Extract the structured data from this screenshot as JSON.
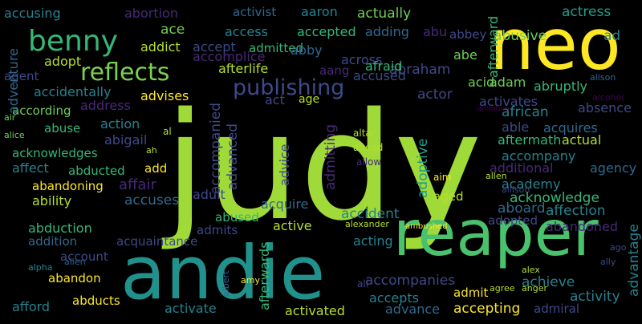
{
  "words": [
    "judy",
    "andie",
    "reaper",
    "neo",
    "benny",
    "reflects",
    "publishing",
    "accusing",
    "abortion",
    "activist",
    "aaron",
    "actually",
    "actress",
    "abbey",
    "abusive",
    "ad",
    "ace",
    "access",
    "accepted",
    "adding",
    "abu",
    "addict",
    "accept",
    "admitted",
    "abby",
    "aang",
    "abe",
    "accused",
    "adopt",
    "accomplice",
    "afterlife",
    "across",
    "abraham",
    "agent",
    "act",
    "age",
    "actor",
    "acid",
    "adam",
    "abruptly",
    "accidentally",
    "advises",
    "address",
    "activates",
    "african",
    "according",
    "absence",
    "able",
    "actual",
    "acquires",
    "action",
    "abuse",
    "abigail",
    "acknowledges",
    "affect",
    "abducted",
    "add",
    "affair",
    "abandoning",
    "accuses",
    "ability",
    "adult",
    "acquire",
    "accident",
    "abused",
    "admits",
    "abduction",
    "acquaintance",
    "addition",
    "active",
    "acting",
    "account",
    "abandon",
    "abducts",
    "afford",
    "activate",
    "activated",
    "advance",
    "accepting",
    "admiral",
    "activity",
    "achieve",
    "accompanies",
    "accepts",
    "admit",
    "aboard",
    "affection",
    "acknowledge",
    "academy",
    "agency",
    "additional",
    "aftermath",
    "accompany",
    "adopted",
    "abandoned",
    "aged",
    "accompanied",
    "advanced",
    "admitting",
    "adoptive",
    "advice",
    "afterwards",
    "afterward",
    "advantage",
    "adventure",
    "aim",
    "ahead",
    "allow",
    "altar",
    "al",
    "ah",
    "air",
    "alice",
    "alpha",
    "alien",
    "allen",
    "allison",
    "ali",
    "amy",
    "albert",
    "alexander",
    "ambushed",
    "alex",
    "alison",
    "alcohol",
    "agree",
    "anger",
    "ago",
    "ally",
    "ambition",
    "afraid"
  ]
}
